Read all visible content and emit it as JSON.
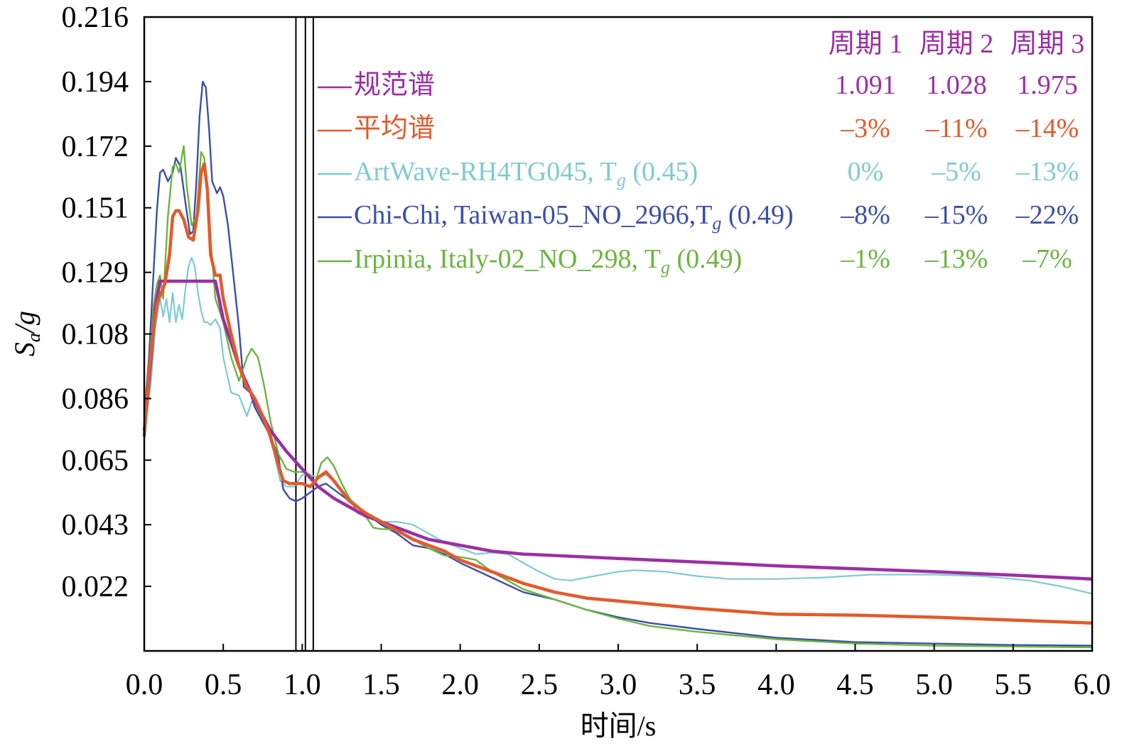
{
  "chart_data": {
    "type": "line",
    "xlabel": "时间/s",
    "ylabel": "Sa/g",
    "xlim": [
      0,
      6
    ],
    "ylim": [
      0,
      0.216
    ],
    "xticks": [
      "0.0",
      "0.5",
      "1.0",
      "1.5",
      "2.0",
      "2.5",
      "3.0",
      "3.5",
      "4.0",
      "4.5",
      "5.0",
      "5.5",
      "6.0"
    ],
    "yticks": [
      "0.216",
      "0.194",
      "0.172",
      "0.151",
      "0.129",
      "0.108",
      "0.086",
      "0.065",
      "0.043",
      "0.022"
    ],
    "period_lines": [
      0.96,
      1.02,
      1.07
    ],
    "table_headers": [
      "周期 1",
      "周期 2",
      "周期 3"
    ],
    "series": [
      {
        "name": "规范谱",
        "color": "#9b2fa3",
        "table": [
          "1.091",
          "1.028",
          "1.975"
        ],
        "points": [
          [
            0,
            0.075
          ],
          [
            0.04,
            0.098
          ],
          [
            0.07,
            0.117
          ],
          [
            0.1,
            0.126
          ],
          [
            0.15,
            0.126
          ],
          [
            0.2,
            0.126
          ],
          [
            0.3,
            0.126
          ],
          [
            0.4,
            0.126
          ],
          [
            0.45,
            0.126
          ],
          [
            0.5,
            0.113
          ],
          [
            0.6,
            0.097
          ],
          [
            0.7,
            0.085
          ],
          [
            0.8,
            0.075
          ],
          [
            0.9,
            0.068
          ],
          [
            1.0,
            0.062
          ],
          [
            1.1,
            0.056
          ],
          [
            1.2,
            0.052
          ],
          [
            1.3,
            0.049
          ],
          [
            1.4,
            0.046
          ],
          [
            1.5,
            0.044
          ],
          [
            1.6,
            0.042
          ],
          [
            1.7,
            0.04
          ],
          [
            1.8,
            0.038
          ],
          [
            1.9,
            0.037
          ],
          [
            2.0,
            0.036
          ],
          [
            2.2,
            0.034
          ],
          [
            2.4,
            0.033
          ],
          [
            2.6,
            0.0325
          ],
          [
            3.0,
            0.0315
          ],
          [
            3.5,
            0.0303
          ],
          [
            4.0,
            0.029
          ],
          [
            4.5,
            0.028
          ],
          [
            5.0,
            0.027
          ],
          [
            5.5,
            0.0258
          ],
          [
            6.0,
            0.0245
          ]
        ]
      },
      {
        "name": "平均谱",
        "color": "#e35a2a",
        "table": [
          "–3%",
          "–11%",
          "–14%"
        ],
        "points": [
          [
            0,
            0.073
          ],
          [
            0.03,
            0.095
          ],
          [
            0.06,
            0.11
          ],
          [
            0.08,
            0.118
          ],
          [
            0.1,
            0.121
          ],
          [
            0.13,
            0.125
          ],
          [
            0.16,
            0.135
          ],
          [
            0.18,
            0.148
          ],
          [
            0.2,
            0.15
          ],
          [
            0.22,
            0.15
          ],
          [
            0.25,
            0.147
          ],
          [
            0.28,
            0.141
          ],
          [
            0.31,
            0.14
          ],
          [
            0.34,
            0.15
          ],
          [
            0.36,
            0.163
          ],
          [
            0.38,
            0.166
          ],
          [
            0.4,
            0.157
          ],
          [
            0.42,
            0.135
          ],
          [
            0.45,
            0.128
          ],
          [
            0.48,
            0.128
          ],
          [
            0.5,
            0.12
          ],
          [
            0.55,
            0.108
          ],
          [
            0.6,
            0.097
          ],
          [
            0.65,
            0.09
          ],
          [
            0.7,
            0.086
          ],
          [
            0.75,
            0.08
          ],
          [
            0.8,
            0.073
          ],
          [
            0.85,
            0.063
          ],
          [
            0.88,
            0.058
          ],
          [
            0.92,
            0.057
          ],
          [
            1.0,
            0.057
          ],
          [
            1.05,
            0.056
          ],
          [
            1.1,
            0.059
          ],
          [
            1.15,
            0.061
          ],
          [
            1.2,
            0.058
          ],
          [
            1.3,
            0.051
          ],
          [
            1.4,
            0.047
          ],
          [
            1.5,
            0.044
          ],
          [
            1.6,
            0.041
          ],
          [
            1.7,
            0.038
          ],
          [
            1.8,
            0.036
          ],
          [
            1.9,
            0.034
          ],
          [
            2.0,
            0.031
          ],
          [
            2.2,
            0.027
          ],
          [
            2.4,
            0.023
          ],
          [
            2.6,
            0.02
          ],
          [
            2.8,
            0.018
          ],
          [
            3.0,
            0.017
          ],
          [
            3.2,
            0.016
          ],
          [
            3.5,
            0.0145
          ],
          [
            4.0,
            0.0125
          ],
          [
            4.5,
            0.0122
          ],
          [
            5.0,
            0.0115
          ],
          [
            5.5,
            0.0105
          ],
          [
            6.0,
            0.0095
          ]
        ]
      },
      {
        "name": "ArtWave-RH4TG045, Tg (0.45)",
        "color": "#7fcad2",
        "table": [
          "0%",
          "–5%",
          "–13%"
        ],
        "points": [
          [
            0,
            0.074
          ],
          [
            0.04,
            0.09
          ],
          [
            0.07,
            0.11
          ],
          [
            0.1,
            0.12
          ],
          [
            0.12,
            0.114
          ],
          [
            0.14,
            0.12
          ],
          [
            0.16,
            0.112
          ],
          [
            0.18,
            0.122
          ],
          [
            0.2,
            0.112
          ],
          [
            0.22,
            0.118
          ],
          [
            0.24,
            0.113
          ],
          [
            0.26,
            0.123
          ],
          [
            0.28,
            0.131
          ],
          [
            0.3,
            0.134
          ],
          [
            0.32,
            0.131
          ],
          [
            0.34,
            0.122
          ],
          [
            0.36,
            0.116
          ],
          [
            0.38,
            0.112
          ],
          [
            0.4,
            0.112
          ],
          [
            0.42,
            0.111
          ],
          [
            0.45,
            0.113
          ],
          [
            0.48,
            0.11
          ],
          [
            0.5,
            0.1
          ],
          [
            0.55,
            0.088
          ],
          [
            0.6,
            0.087
          ],
          [
            0.65,
            0.08
          ],
          [
            0.68,
            0.085
          ],
          [
            0.72,
            0.082
          ],
          [
            0.78,
            0.075
          ],
          [
            0.82,
            0.068
          ],
          [
            0.86,
            0.058
          ],
          [
            0.9,
            0.056
          ],
          [
            0.95,
            0.056
          ],
          [
            1.0,
            0.06
          ],
          [
            1.05,
            0.06
          ],
          [
            1.1,
            0.059
          ],
          [
            1.15,
            0.06
          ],
          [
            1.2,
            0.058
          ],
          [
            1.3,
            0.052
          ],
          [
            1.4,
            0.047
          ],
          [
            1.5,
            0.044
          ],
          [
            1.6,
            0.044
          ],
          [
            1.7,
            0.043
          ],
          [
            1.8,
            0.04
          ],
          [
            1.9,
            0.037
          ],
          [
            2.0,
            0.035
          ],
          [
            2.1,
            0.033
          ],
          [
            2.2,
            0.0335
          ],
          [
            2.3,
            0.033
          ],
          [
            2.4,
            0.03
          ],
          [
            2.5,
            0.027
          ],
          [
            2.6,
            0.0245
          ],
          [
            2.7,
            0.024
          ],
          [
            2.8,
            0.025
          ],
          [
            2.9,
            0.026
          ],
          [
            3.0,
            0.027
          ],
          [
            3.1,
            0.0275
          ],
          [
            3.3,
            0.027
          ],
          [
            3.5,
            0.0255
          ],
          [
            3.7,
            0.0245
          ],
          [
            4.0,
            0.0245
          ],
          [
            4.3,
            0.025
          ],
          [
            4.6,
            0.026
          ],
          [
            5.0,
            0.026
          ],
          [
            5.3,
            0.0255
          ],
          [
            5.6,
            0.024
          ],
          [
            5.8,
            0.022
          ],
          [
            6.0,
            0.0195
          ]
        ]
      },
      {
        "name": "Chi-Chi, Taiwan-05_NO_2966,Tg (0.49)",
        "color": "#3d4fa6",
        "table": [
          "–8%",
          "–15%",
          "–22%"
        ],
        "points": [
          [
            0,
            0.08
          ],
          [
            0.03,
            0.1
          ],
          [
            0.06,
            0.13
          ],
          [
            0.08,
            0.15
          ],
          [
            0.1,
            0.163
          ],
          [
            0.12,
            0.164
          ],
          [
            0.15,
            0.16
          ],
          [
            0.18,
            0.163
          ],
          [
            0.2,
            0.168
          ],
          [
            0.23,
            0.165
          ],
          [
            0.26,
            0.153
          ],
          [
            0.29,
            0.142
          ],
          [
            0.31,
            0.143
          ],
          [
            0.33,
            0.16
          ],
          [
            0.35,
            0.182
          ],
          [
            0.37,
            0.194
          ],
          [
            0.39,
            0.192
          ],
          [
            0.41,
            0.178
          ],
          [
            0.43,
            0.16
          ],
          [
            0.46,
            0.156
          ],
          [
            0.48,
            0.158
          ],
          [
            0.5,
            0.155
          ],
          [
            0.53,
            0.145
          ],
          [
            0.56,
            0.13
          ],
          [
            0.6,
            0.11
          ],
          [
            0.63,
            0.09
          ],
          [
            0.67,
            0.088
          ],
          [
            0.7,
            0.083
          ],
          [
            0.75,
            0.078
          ],
          [
            0.8,
            0.073
          ],
          [
            0.85,
            0.066
          ],
          [
            0.88,
            0.055
          ],
          [
            0.92,
            0.052
          ],
          [
            0.96,
            0.051
          ],
          [
            1.0,
            0.052
          ],
          [
            1.05,
            0.054
          ],
          [
            1.1,
            0.056
          ],
          [
            1.15,
            0.057
          ],
          [
            1.2,
            0.055
          ],
          [
            1.3,
            0.051
          ],
          [
            1.4,
            0.047
          ],
          [
            1.5,
            0.043
          ],
          [
            1.6,
            0.04
          ],
          [
            1.7,
            0.036
          ],
          [
            1.8,
            0.035
          ],
          [
            1.9,
            0.033
          ],
          [
            2.0,
            0.03
          ],
          [
            2.2,
            0.025
          ],
          [
            2.4,
            0.02
          ],
          [
            2.6,
            0.0175
          ],
          [
            2.8,
            0.014
          ],
          [
            3.0,
            0.0115
          ],
          [
            3.2,
            0.0095
          ],
          [
            3.5,
            0.0075
          ],
          [
            4.0,
            0.0045
          ],
          [
            4.5,
            0.003
          ],
          [
            5.0,
            0.0025
          ],
          [
            5.5,
            0.002
          ],
          [
            6.0,
            0.0018
          ]
        ]
      },
      {
        "name": "Irpinia, Italy-02_NO_298, Tg (0.49)",
        "color": "#6bb53f",
        "table": [
          "–1%",
          "–13%",
          "–7%"
        ],
        "points": [
          [
            0,
            0.075
          ],
          [
            0.03,
            0.095
          ],
          [
            0.06,
            0.118
          ],
          [
            0.08,
            0.125
          ],
          [
            0.1,
            0.128
          ],
          [
            0.12,
            0.12
          ],
          [
            0.15,
            0.148
          ],
          [
            0.18,
            0.165
          ],
          [
            0.2,
            0.166
          ],
          [
            0.22,
            0.163
          ],
          [
            0.25,
            0.172
          ],
          [
            0.27,
            0.158
          ],
          [
            0.3,
            0.145
          ],
          [
            0.33,
            0.148
          ],
          [
            0.36,
            0.17
          ],
          [
            0.38,
            0.168
          ],
          [
            0.4,
            0.158
          ],
          [
            0.42,
            0.14
          ],
          [
            0.45,
            0.12
          ],
          [
            0.5,
            0.112
          ],
          [
            0.55,
            0.1
          ],
          [
            0.6,
            0.092
          ],
          [
            0.65,
            0.1
          ],
          [
            0.68,
            0.103
          ],
          [
            0.72,
            0.1
          ],
          [
            0.76,
            0.09
          ],
          [
            0.8,
            0.078
          ],
          [
            0.85,
            0.067
          ],
          [
            0.9,
            0.062
          ],
          [
            0.95,
            0.061
          ],
          [
            1.0,
            0.061
          ],
          [
            1.05,
            0.06
          ],
          [
            1.08,
            0.057
          ],
          [
            1.12,
            0.064
          ],
          [
            1.16,
            0.066
          ],
          [
            1.2,
            0.063
          ],
          [
            1.25,
            0.057
          ],
          [
            1.3,
            0.052
          ],
          [
            1.35,
            0.047
          ],
          [
            1.4,
            0.046
          ],
          [
            1.45,
            0.042
          ],
          [
            1.5,
            0.0415
          ],
          [
            1.6,
            0.0415
          ],
          [
            1.7,
            0.038
          ],
          [
            1.8,
            0.035
          ],
          [
            1.9,
            0.0325
          ],
          [
            2.0,
            0.032
          ],
          [
            2.1,
            0.031
          ],
          [
            2.2,
            0.027
          ],
          [
            2.4,
            0.021
          ],
          [
            2.6,
            0.0175
          ],
          [
            2.8,
            0.014
          ],
          [
            3.0,
            0.011
          ],
          [
            3.2,
            0.0085
          ],
          [
            3.5,
            0.0065
          ],
          [
            4.0,
            0.004
          ],
          [
            4.5,
            0.0025
          ],
          [
            5.0,
            0.0018
          ],
          [
            5.5,
            0.0015
          ],
          [
            6.0,
            0.0012
          ]
        ]
      }
    ]
  }
}
